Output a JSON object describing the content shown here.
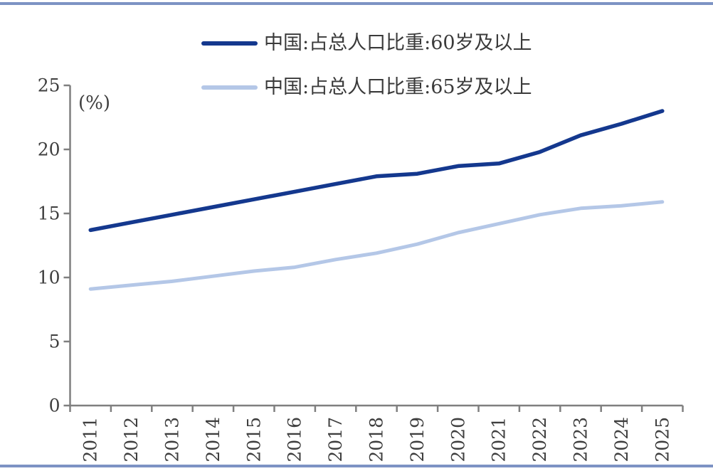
{
  "page": {
    "background": "#ffffff",
    "border_line_color": "#7d93c4"
  },
  "chart_data": {
    "type": "line",
    "title": "",
    "unit_label": "(%)",
    "categories": [
      "2011",
      "2012",
      "2013",
      "2014",
      "2015",
      "2016",
      "2017",
      "2018",
      "2019",
      "2020",
      "2021",
      "2022",
      "2023",
      "2024",
      "2025"
    ],
    "series": [
      {
        "name": "中国:占总人口比重:60岁及以上",
        "color": "#14388e",
        "values": [
          13.7,
          14.3,
          14.9,
          15.5,
          16.1,
          16.7,
          17.3,
          17.9,
          18.1,
          18.7,
          18.9,
          19.8,
          21.1,
          22.0,
          23.0
        ]
      },
      {
        "name": "中国:占总人口比重:65岁及以上",
        "color": "#b4c7e7",
        "values": [
          9.1,
          9.4,
          9.7,
          10.1,
          10.5,
          10.8,
          11.4,
          11.9,
          12.6,
          13.5,
          14.2,
          14.9,
          15.4,
          15.6,
          15.9
        ]
      }
    ],
    "xlabel": "",
    "ylabel": "",
    "ylim": [
      0,
      25
    ],
    "y_ticks": [
      "0",
      "5",
      "10",
      "15",
      "20",
      "25"
    ],
    "y_tick_step": 5,
    "x_tick_label_rotation": -90,
    "grid": "off",
    "legend_position": "top-center",
    "axis_color": "#7f7f7f",
    "tick_text_color": "#3f3f3f"
  }
}
